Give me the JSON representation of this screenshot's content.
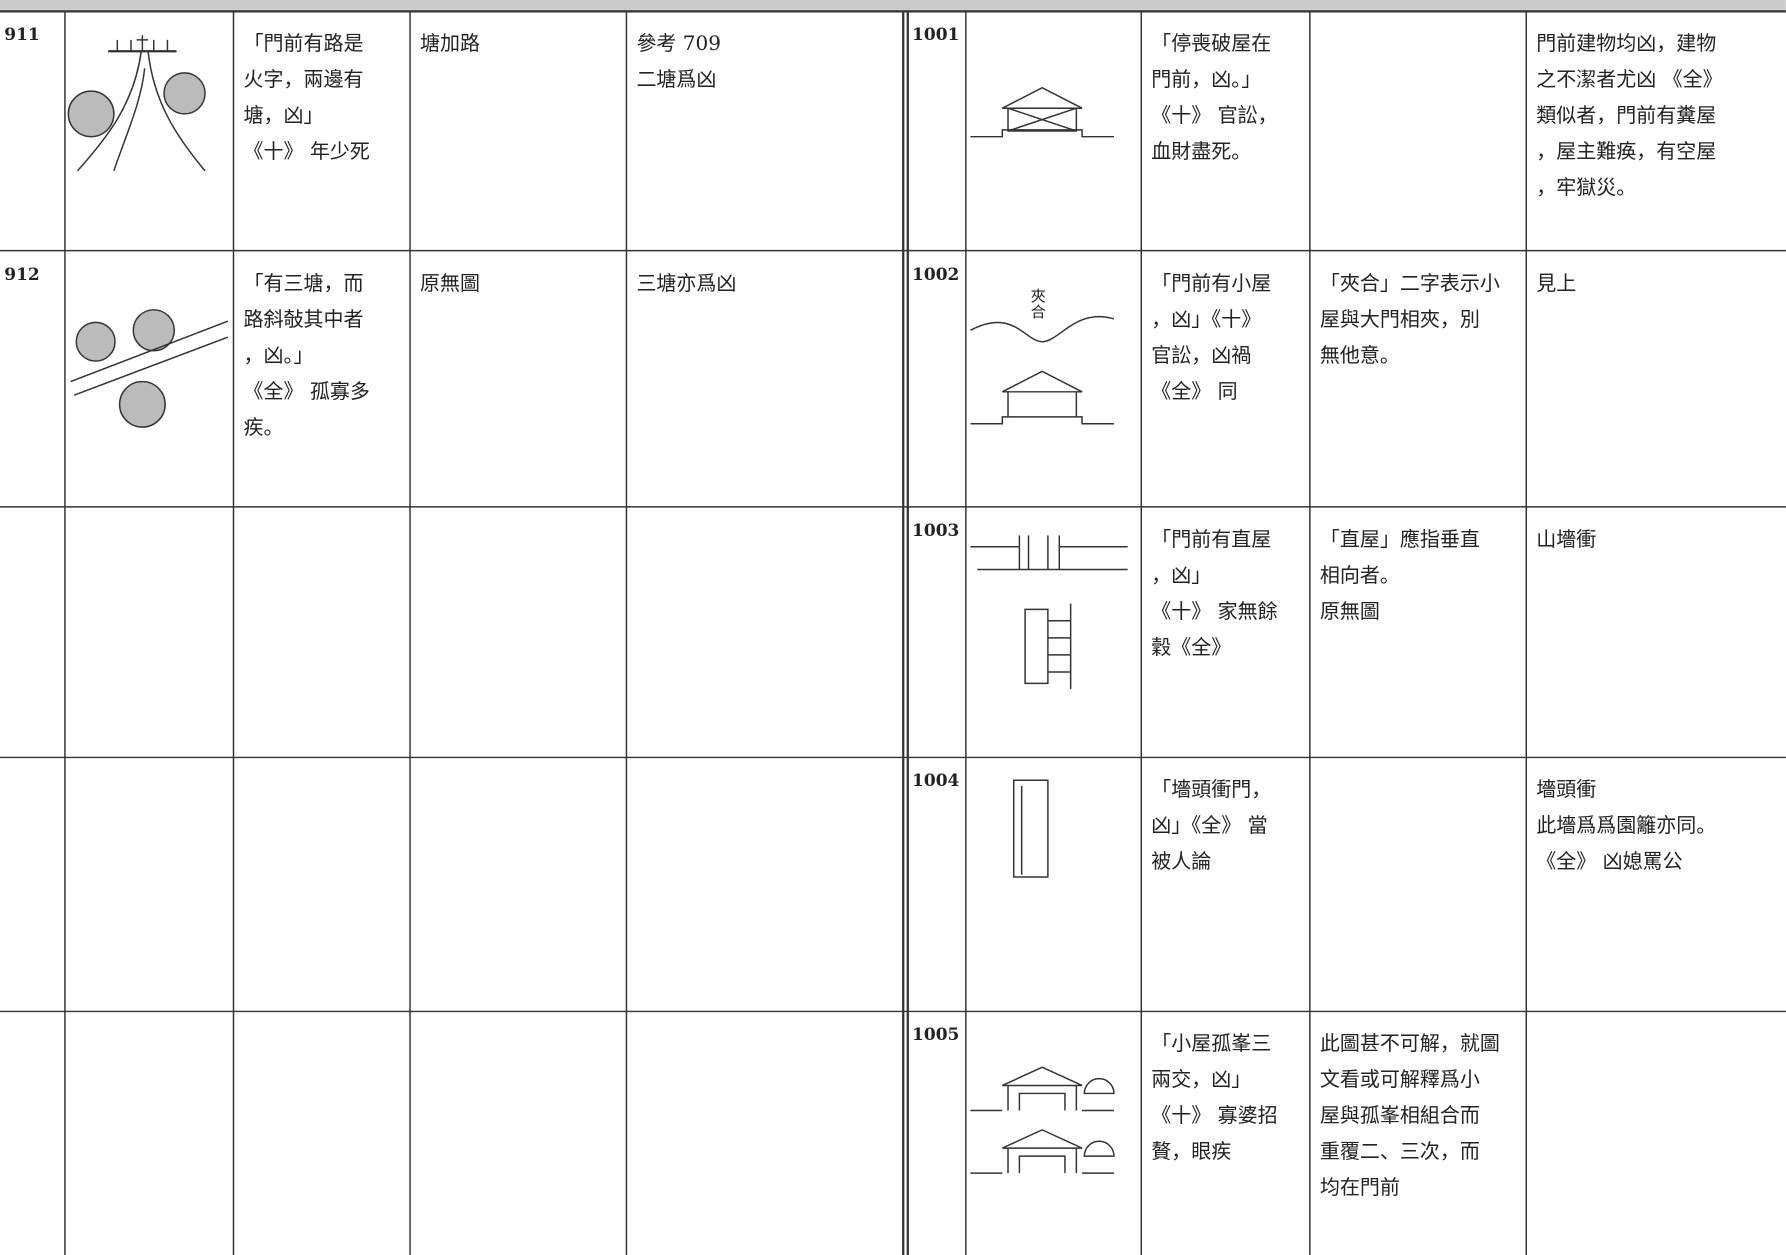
{
  "left": {
    "rows": [
      {
        "no": "911",
        "text": [
          "「門前有路是",
          "火字，兩邊有",
          "塘，凶」",
          "《十》 年少死"
        ],
        "note": [
          "塘加路"
        ],
        "remark": [
          "參考 709",
          "二塘爲凶"
        ]
      },
      {
        "no": "912",
        "text": [
          "「有三塘，而",
          "路斜敧其中者",
          "，凶。」",
          "《全》 孤寡多",
          "疾。"
        ],
        "note": [
          "原無圖"
        ],
        "remark": [
          "三塘亦爲凶"
        ]
      }
    ]
  },
  "right": {
    "rows": [
      {
        "no": "1001",
        "text": [
          "「停喪破屋在",
          "門前，凶。」",
          "《十》 官訟，",
          "血財盡死。"
        ],
        "remark": [
          "門前建物均凶，建物",
          "之不潔者尤凶 《全》",
          "類似者，門前有糞屋",
          "，屋主難痪，有空屋",
          "，牢獄災。"
        ]
      },
      {
        "no": "1002",
        "figure_label": [
          "夾",
          "合"
        ],
        "text": [
          "「門前有小屋",
          "，凶」《十》",
          "官訟，凶禍",
          "《全》 同"
        ],
        "note": [
          "「夾合」二字表示小",
          "屋與大門相夾，別",
          "無他意。"
        ],
        "remark": [
          "見上"
        ]
      },
      {
        "no": "1003",
        "text": [
          "「門前有直屋",
          "，凶」",
          "《十》 家無餘",
          "穀《全》"
        ],
        "note": [
          "「直屋」應指垂直",
          "相向者。",
          "原無圖"
        ],
        "remark": [
          "山墻衝"
        ]
      },
      {
        "no": "1004",
        "text": [
          "「墻頭衝門，",
          "凶」《全》 當",
          "被人論"
        ],
        "remark": [
          "墻頭衝",
          "此墻爲爲園籬亦同。",
          "《全》 凶媳罵公"
        ]
      },
      {
        "no": "1005",
        "text": [
          "「小屋孤峯三",
          "兩交，凶」",
          "《十》 寡婆招",
          "贅，眼疾"
        ],
        "note": [
          "此圖甚不可解，就圖",
          "文看或可解釋爲小",
          "屋與孤峯相組合而",
          "重覆二、三次，而",
          "均在門前"
        ]
      }
    ]
  }
}
